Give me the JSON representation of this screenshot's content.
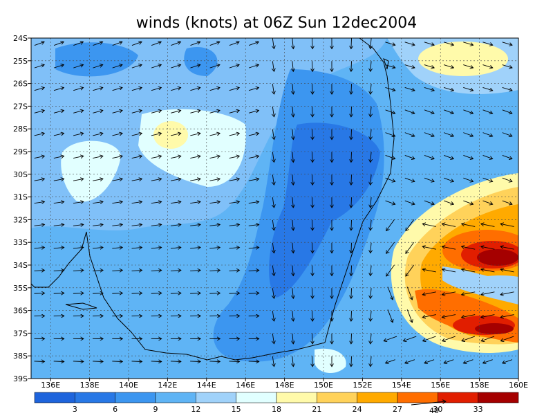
{
  "title": "winds (knots) at 06Z Sun 12dec2004",
  "lat_labels": [
    "24S",
    "25S",
    "26S",
    "27S",
    "28S",
    "29S",
    "30S",
    "31S",
    "32S",
    "33S",
    "34S",
    "35S",
    "36S",
    "37S",
    "38S",
    "39S"
  ],
  "lon_labels": [
    "136E",
    "138E",
    "140E",
    "142E",
    "144E",
    "146E",
    "148E",
    "150E",
    "152E",
    "154E",
    "156E",
    "158E",
    "160E"
  ],
  "colorbar": {
    "colors": [
      "#1e64dc",
      "#2878e6",
      "#3c96f0",
      "#5fb4f5",
      "#a0d2fa",
      "#e1ffff",
      "#fffaaa",
      "#ffd25a",
      "#ffaa00",
      "#ff6e00",
      "#e11e00",
      "#a50000"
    ],
    "labels": [
      "3",
      "6",
      "9",
      "12",
      "15",
      "18",
      "21",
      "24",
      "27",
      "30",
      "33"
    ]
  },
  "reference_vector_label": "40"
}
